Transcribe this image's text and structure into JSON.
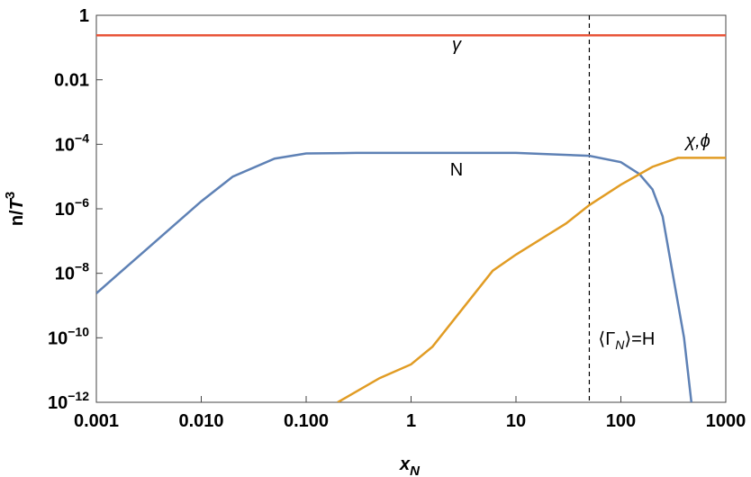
{
  "chart_data": {
    "type": "line",
    "xlabel": [
      "x",
      "N"
    ],
    "ylabel": [
      "n/",
      "T",
      "3"
    ],
    "xscale": "log",
    "yscale": "log",
    "xlim": [
      0.001,
      1000
    ],
    "ylim": [
      1e-12,
      1
    ],
    "xticks": [
      0.001,
      {
        "value": 0.01,
        "label": "0.010"
      },
      {
        "value": 0.1,
        "label": "0.100"
      },
      1,
      10,
      100,
      1000
    ],
    "yticks": [
      {
        "value": 1e-12,
        "label": "10",
        "exponent": "−12"
      },
      {
        "value": 1e-10,
        "label": "10",
        "exponent": "−10"
      },
      {
        "value": 1e-08,
        "label": "10",
        "exponent": "−8"
      },
      {
        "value": 1e-06,
        "label": "10",
        "exponent": "−6"
      },
      {
        "value": 0.0001,
        "label": "10",
        "exponent": "−4"
      },
      0.01,
      1
    ],
    "vline": {
      "x": 50,
      "label": [
        "⟨Γ",
        "N",
        "⟩=H"
      ]
    },
    "series": [
      {
        "name": "γ",
        "color": "#e8553a",
        "x": [
          0.001,
          1000
        ],
        "values": [
          0.24,
          0.24
        ]
      },
      {
        "name": "N",
        "color": "#5e81b5",
        "x": [
          0.001,
          0.003,
          0.01,
          0.02,
          0.05,
          0.1,
          0.3,
          1,
          10,
          50,
          100,
          150,
          200,
          250,
          300,
          400,
          470
        ],
        "values": [
          2.4e-09,
          5.5e-08,
          1.7e-06,
          1e-05,
          3.6e-05,
          5.2e-05,
          5.4e-05,
          5.4e-05,
          5.4e-05,
          4.4e-05,
          2.8e-05,
          1.2e-05,
          4e-06,
          5.8e-07,
          2e-08,
          1e-10,
          1e-12
        ]
      },
      {
        "name": "χ,ϕ",
        "color": "#e19c24",
        "x": [
          0.2,
          0.5,
          1,
          1.6,
          3,
          6,
          10,
          30,
          50,
          100,
          200,
          350,
          1000
        ],
        "values": [
          1e-12,
          5.6e-12,
          1.5e-11,
          5.3e-11,
          7e-10,
          1.2e-08,
          3.8e-08,
          3.5e-07,
          1.3e-06,
          5.6e-06,
          2e-05,
          3.8e-05,
          3.8e-05
        ]
      }
    ]
  }
}
